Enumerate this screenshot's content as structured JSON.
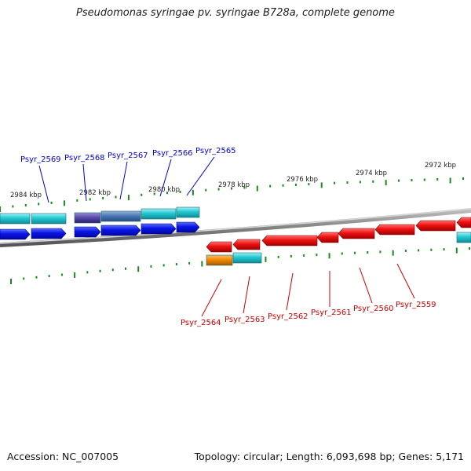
{
  "title": "Pseudomonas syringae pv. syringae B728a, complete genome",
  "footer": {
    "accession": "Accession: NC_007005",
    "topology": "Topology: circular; Length: 6,093,698 bp; Genes: 5,171"
  },
  "scale_labels": [
    "2984 kbp",
    "2982 kbp",
    "2980 kbp",
    "2978 kbp",
    "2976 kbp",
    "2974 kbp",
    "2972 kbp"
  ],
  "forward_gene_labels": [
    "Psyr_2569",
    "Psyr_2568",
    "Psyr_2567",
    "Psyr_2566",
    "Psyr_2565"
  ],
  "reverse_gene_labels": [
    "Psyr_2564",
    "Psyr_2563",
    "Psyr_2562",
    "Psyr_2561",
    "Psyr_2560",
    "Psyr_2559"
  ],
  "colors": {
    "forward_label": "#0000cc",
    "reverse_label": "#cc0000",
    "forward_cds": "#0a14e6",
    "reverse_cds": "#ee1111",
    "cog_cyan": "#22c8d2",
    "cog_orange": "#f08a00",
    "cog_slate": "#4a78b4",
    "cog_purple": "#5a4eaa",
    "tick": "#1a8a1a",
    "backbone": "#888888"
  }
}
